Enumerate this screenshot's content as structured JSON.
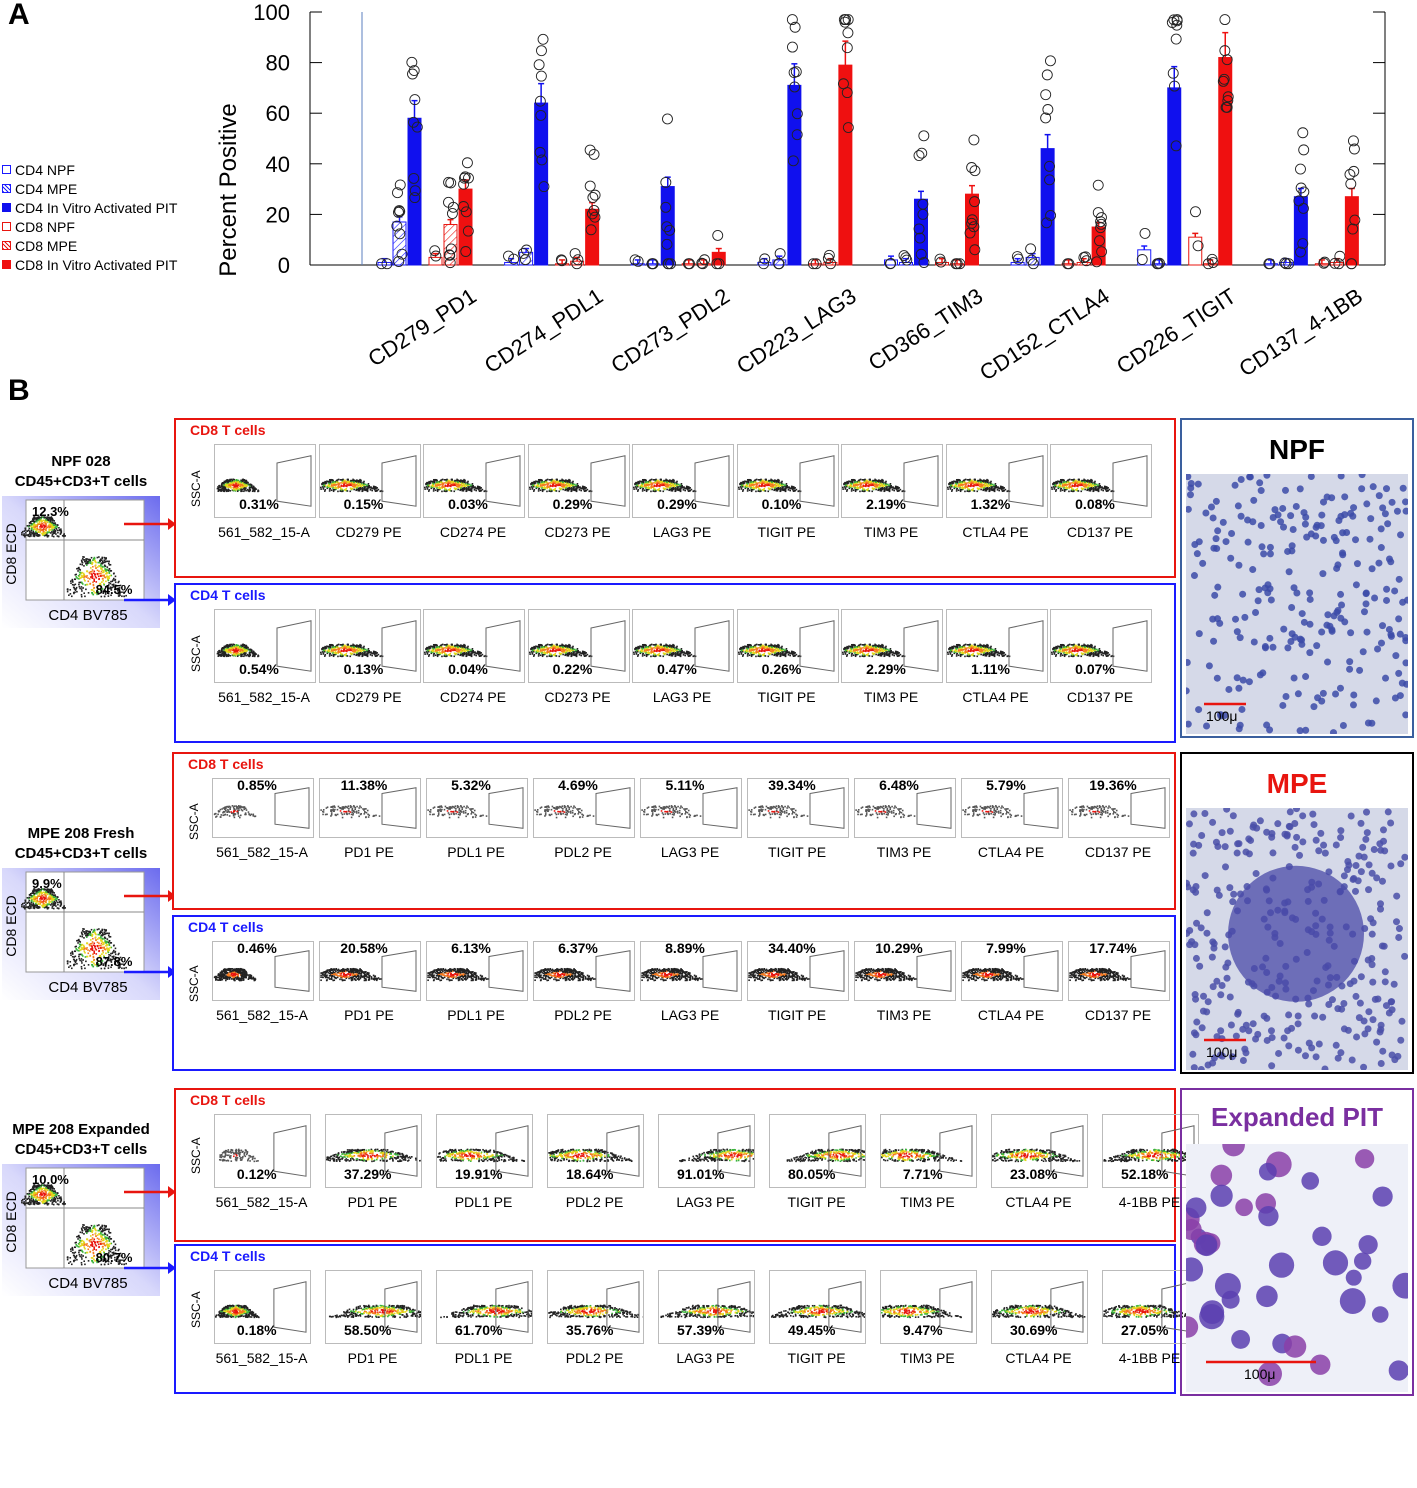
{
  "panel_a_label": "A",
  "panel_b_label": "B",
  "chart_data": {
    "type": "bar",
    "ylabel": "Percent Positive",
    "ylim": [
      0,
      100
    ],
    "yticks": [
      "0",
      "20",
      "40",
      "60",
      "80",
      "100"
    ],
    "categories": [
      "CD279_PD1",
      "CD274_PDL1",
      "CD273_PDL2",
      "CD223_LAG3",
      "CD366_TIM3",
      "CD152_CTLA4",
      "CD226_TIGIT",
      "CD137_4-1BB"
    ],
    "series": [
      {
        "name": "CD4 NPF",
        "color": "#1a1aff",
        "style": "open",
        "values": [
          1,
          1,
          0.5,
          1,
          2,
          1,
          6,
          0.5
        ]
      },
      {
        "name": "CD4 MPE",
        "color": "#1a1aff",
        "style": "hatch",
        "values": [
          17,
          5,
          0.5,
          2,
          1,
          3,
          0.5,
          1
        ]
      },
      {
        "name": "CD4 In Vitro Activated PIT",
        "color": "#1010ee",
        "style": "solid",
        "values": [
          58,
          64,
          31,
          71,
          26,
          46,
          70,
          27
        ]
      },
      {
        "name": "CD8 NPF",
        "color": "#e8150f",
        "style": "open",
        "values": [
          3,
          0.5,
          0.5,
          0.5,
          1,
          0.5,
          11,
          0.5
        ]
      },
      {
        "name": "CD8 MPE",
        "color": "#e8150f",
        "style": "hatch",
        "values": [
          16,
          1.5,
          0.5,
          1,
          0.5,
          1,
          0.5,
          1
        ]
      },
      {
        "name": "CD8 In Vitro Activated PIT",
        "color": "#ef1010",
        "style": "solid",
        "values": [
          30,
          22,
          5,
          79,
          28,
          15,
          82,
          27
        ]
      }
    ]
  },
  "blocks": [
    {
      "sample": "NPF 028",
      "cells": "CD45+CD3+T cells",
      "q_cd8": "12.3%",
      "q_cd4": "84.5%",
      "xaxis": "CD4 BV785",
      "yaxis": "CD8 ECD",
      "cd8": {
        "title": "CD8 T cells",
        "ssc": "SSC-A",
        "pcts": [
          "0.31%",
          "0.15%",
          "0.03%",
          "0.29%",
          "0.29%",
          "0.10%",
          "2.19%",
          "1.32%",
          "0.08%"
        ],
        "labels": [
          "561_582_15-A",
          "CD279 PE",
          "CD274 PE",
          "CD273 PE",
          "LAG3 PE",
          "TIGIT PE",
          "TIM3 PE",
          "CTLA4 PE",
          "CD137 PE"
        ]
      },
      "cd4": {
        "title": "CD4 T cells",
        "ssc": "SSC-A",
        "pcts": [
          "0.54%",
          "0.13%",
          "0.04%",
          "0.22%",
          "0.47%",
          "0.26%",
          "2.29%",
          "1.11%",
          "0.07%"
        ],
        "labels": [
          "561_582_15-A",
          "CD279 PE",
          "CD274 PE",
          "CD273 PE",
          "LAG3 PE",
          "TIGIT PE",
          "TIM3 PE",
          "CTLA4 PE",
          "CD137 PE"
        ]
      },
      "micro_title": "NPF",
      "micro_color": "#000000",
      "scale": "100μ"
    },
    {
      "sample": "MPE 208 Fresh",
      "cells": "CD45+CD3+T cells",
      "q_cd8": "9.9%",
      "q_cd4": "87.8%",
      "xaxis": "CD4 BV785",
      "yaxis": "CD8 ECD",
      "cd8": {
        "title": "CD8 T cells",
        "ssc": "SSC-A",
        "pcts": [
          "0.85%",
          "11.38%",
          "5.32%",
          "4.69%",
          "5.11%",
          "39.34%",
          "6.48%",
          "5.79%",
          "19.36%"
        ],
        "labels": [
          "561_582_15-A",
          "PD1 PE",
          "PDL1 PE",
          "PDL2 PE",
          "LAG3 PE",
          "TIGIT PE",
          "TIM3 PE",
          "CTLA4 PE",
          "CD137 PE"
        ]
      },
      "cd4": {
        "title": "CD4 T cells",
        "ssc": "SSC-A",
        "pcts": [
          "0.46%",
          "20.58%",
          "6.13%",
          "6.37%",
          "8.89%",
          "34.40%",
          "10.29%",
          "7.99%",
          "17.74%"
        ],
        "labels": [
          "561_582_15-A",
          "PD1 PE",
          "PDL1 PE",
          "PDL2 PE",
          "LAG3 PE",
          "TIGIT PE",
          "TIM3 PE",
          "CTLA4 PE",
          "CD137 PE"
        ]
      },
      "micro_title": "MPE",
      "micro_color": "#e8150f",
      "scale": "100μ"
    },
    {
      "sample": "MPE 208 Expanded",
      "cells": "CD45+CD3+T cells",
      "q_cd8": "10.0%",
      "q_cd4": "80.7%",
      "xaxis": "CD4 BV785",
      "yaxis": "CD8 ECD",
      "cd8": {
        "title": "CD8 T cells",
        "ssc": "SSC-A",
        "pcts": [
          "0.12%",
          "37.29%",
          "19.91%",
          "18.64%",
          "91.01%",
          "80.05%",
          "7.71%",
          "23.08%",
          "52.18%"
        ],
        "labels": [
          "561_582_15-A",
          "PD1 PE",
          "PDL1 PE",
          "PDL2 PE",
          "LAG3 PE",
          "TIGIT PE",
          "TIM3 PE",
          "CTLA4 PE",
          "4-1BB PE"
        ]
      },
      "cd4": {
        "title": "CD4 T cells",
        "ssc": "SSC-A",
        "pcts": [
          "0.18%",
          "58.50%",
          "61.70%",
          "35.76%",
          "57.39%",
          "49.45%",
          "9.47%",
          "30.69%",
          "27.05%"
        ],
        "labels": [
          "561_582_15-A",
          "PD1 PE",
          "PDL1 PE",
          "PDL2 PE",
          "LAG3 PE",
          "TIGIT PE",
          "TIM3 PE",
          "CTLA4 PE",
          "4-1BB PE"
        ]
      },
      "micro_title": "Expanded PIT",
      "micro_color": "#7a2fa0",
      "scale": "100μ"
    }
  ]
}
